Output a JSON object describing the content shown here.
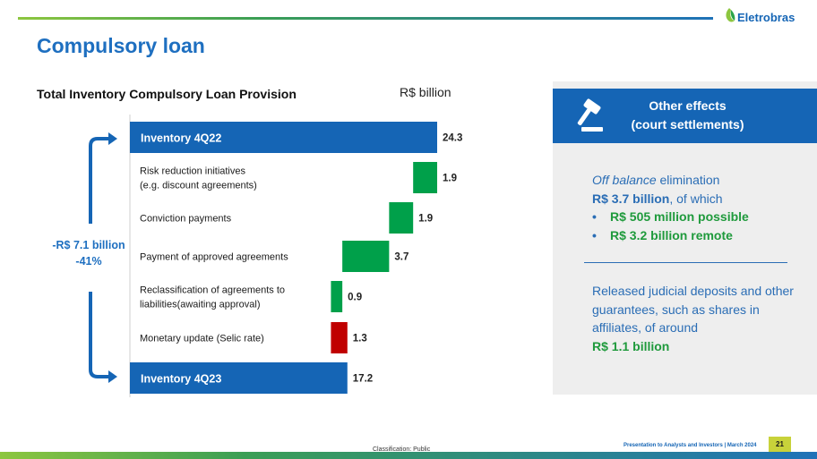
{
  "header": {
    "logo_text": "Eletrobras",
    "title": "Compulsory loan"
  },
  "chart_heading": "Total Inventory Compulsory Loan Provision",
  "unit_label": "R$ billion",
  "side_label": {
    "line1": "-R$ 7.1 billion",
    "line2": "-41%"
  },
  "chart_data": {
    "type": "bar",
    "subtype": "waterfall",
    "title": "Total Inventory Compulsory Loan Provision",
    "unit": "R$ billion",
    "xlim": [
      0,
      24.3
    ],
    "categories": [
      "Inventory 4Q22",
      "Risk reduction initiatives\n(e.g. discount agreements)",
      "Conviction payments",
      "Payment of approved agreements",
      "Reclassification of agreements to\nliabilities(awaiting approval)",
      "Monetary update (Selic rate)",
      "Inventory 4Q23"
    ],
    "values": [
      24.3,
      -1.9,
      -1.9,
      -3.7,
      -0.9,
      1.3,
      17.2
    ],
    "value_labels": [
      "24.3",
      "1.9",
      "1.9",
      "3.7",
      "0.9",
      "1.3",
      "17.2"
    ],
    "kinds": [
      "total",
      "decrease",
      "decrease",
      "decrease",
      "decrease",
      "increase",
      "total"
    ],
    "colors": {
      "total": "#1565b5",
      "decrease": "#00a04a",
      "increase": "#c00000"
    }
  },
  "panel": {
    "title_line1": "Other effects",
    "title_line2": "(court settlements)",
    "p1_italic": "Off balance",
    "p1_rest": " elimination",
    "p1_bold": "R$ 3.7 billion",
    "p1_tail": ", of which",
    "bullets": [
      "R$ 505 million possible",
      "R$ 3.2 billion remote"
    ],
    "p2_text": "Released judicial deposits and other guarantees, such as shares in affiliates, of around",
    "p2_bold": "R$ 1.1 billion"
  },
  "footer": {
    "classification": "Classification: Public",
    "presentation": "Presentation to Analysts and Investors  |  March 2024",
    "page": "21"
  }
}
